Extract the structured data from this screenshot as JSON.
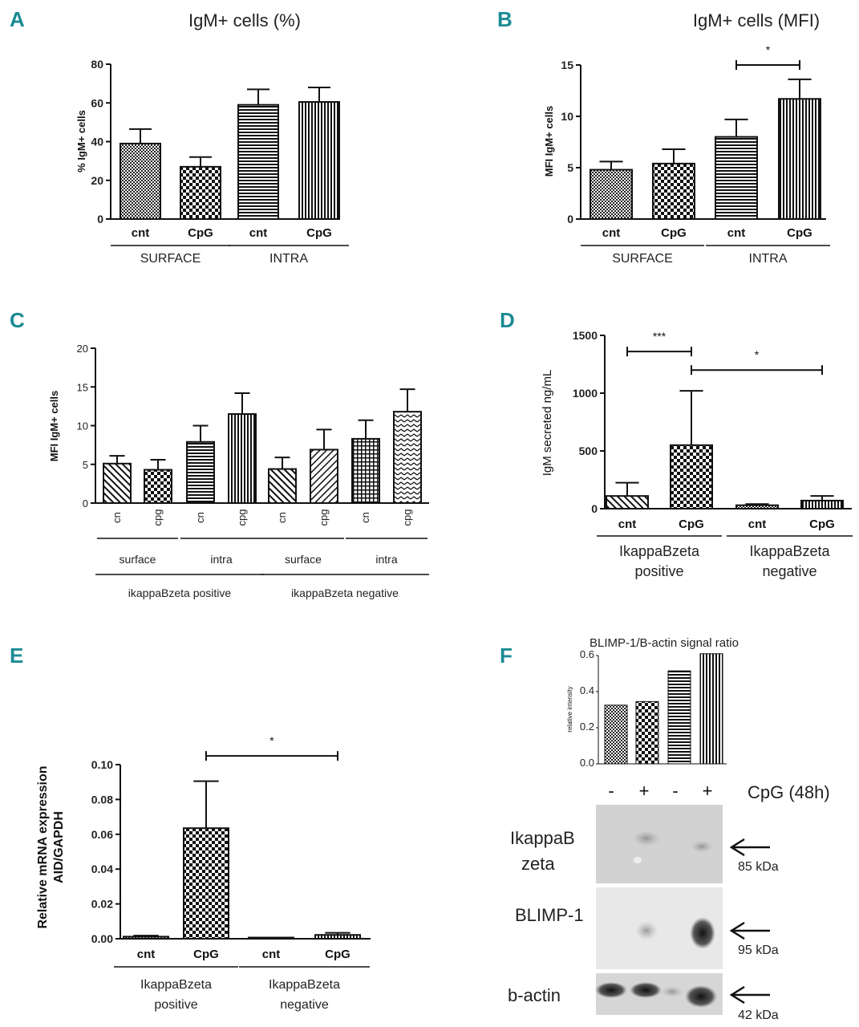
{
  "panels": {
    "A": {
      "letter": "A"
    },
    "B": {
      "letter": "B"
    },
    "C": {
      "letter": "C"
    },
    "D": {
      "letter": "D"
    },
    "E": {
      "letter": "E"
    },
    "F": {
      "letter": "F"
    }
  },
  "chart_data": [
    {
      "id": "A",
      "type": "bar",
      "title": "IgM+ cells (%)",
      "ylabel": "% IgM+ cells",
      "ylim": [
        0,
        80
      ],
      "yticks": [
        0,
        20,
        40,
        60,
        80
      ],
      "categories": [
        "cnt",
        "CpG",
        "cnt",
        "CpG"
      ],
      "groups": [
        {
          "label": "SURFACE",
          "from": 0,
          "to": 1
        },
        {
          "label": "INTRA",
          "from": 2,
          "to": 3
        }
      ],
      "values": [
        39,
        27,
        59,
        60.5
      ],
      "errors": [
        7.5,
        5,
        8,
        7.5
      ],
      "patterns": [
        "dots",
        "checker",
        "hlines",
        "vlines"
      ]
    },
    {
      "id": "B",
      "type": "bar",
      "title": "IgM+ cells (MFI)",
      "ylabel": "MFI IgM+ cells",
      "ylim": [
        0,
        15
      ],
      "yticks": [
        0,
        5,
        10,
        15
      ],
      "categories": [
        "cnt",
        "CpG",
        "cnt",
        "CpG"
      ],
      "groups": [
        {
          "label": "SURFACE",
          "from": 0,
          "to": 1
        },
        {
          "label": "INTRA",
          "from": 2,
          "to": 3
        }
      ],
      "values": [
        4.8,
        5.4,
        8.0,
        11.7
      ],
      "errors": [
        0.8,
        1.4,
        1.7,
        1.9
      ],
      "patterns": [
        "dots",
        "checker",
        "hlines",
        "vlines"
      ],
      "significance": [
        {
          "from": 2,
          "to": 3,
          "label": "*",
          "y": 15
        }
      ]
    },
    {
      "id": "C",
      "type": "bar",
      "ylabel": "MFI IgM+ cells",
      "ylim": [
        0,
        20
      ],
      "yticks": [
        0,
        5,
        10,
        15,
        20
      ],
      "categories": [
        "cn",
        "cpg",
        "cn",
        "cpg",
        "cn",
        "cpg",
        "cn",
        "cpg"
      ],
      "subgroups": [
        {
          "label": "surface",
          "from": 0,
          "to": 1
        },
        {
          "label": "intra",
          "from": 2,
          "to": 3
        },
        {
          "label": "surface",
          "from": 4,
          "to": 5
        },
        {
          "label": "intra",
          "from": 6,
          "to": 7
        }
      ],
      "groups": [
        {
          "label": "ikappaBzeta positive",
          "from": 0,
          "to": 3
        },
        {
          "label": "ikappaBzeta negative",
          "from": 4,
          "to": 7
        }
      ],
      "values": [
        5.1,
        4.3,
        7.9,
        11.5,
        4.4,
        6.9,
        8.3,
        11.8
      ],
      "errors": [
        1.0,
        1.3,
        2.1,
        2.7,
        1.5,
        2.6,
        2.4,
        2.9
      ],
      "patterns": [
        "diag",
        "checker",
        "hlines",
        "vlines",
        "diag",
        "rdiag",
        "grid",
        "zigzag"
      ]
    },
    {
      "id": "D",
      "type": "bar",
      "ylabel": "IgM secreted ng/mL",
      "ylim": [
        0,
        1500
      ],
      "yticks": [
        0,
        500,
        1000,
        1500
      ],
      "categories": [
        "cnt",
        "CpG",
        "cnt",
        "CpG"
      ],
      "groups": [
        {
          "label": "IkappaBzeta",
          "label2": "positive",
          "from": 0,
          "to": 1
        },
        {
          "label": "IkappaBzeta",
          "label2": "negative",
          "from": 2,
          "to": 3
        }
      ],
      "values": [
        110,
        550,
        30,
        70
      ],
      "errors": [
        115,
        470,
        10,
        40
      ],
      "patterns": [
        "diag",
        "checker",
        "dots",
        "vlines"
      ],
      "significance": [
        {
          "from": 0,
          "to": 1,
          "label": "***",
          "y": 1360
        },
        {
          "from": 1,
          "to": 3,
          "label": "*",
          "y": 1200
        }
      ]
    },
    {
      "id": "E",
      "type": "bar",
      "ylabel": "Relative mRNA expression",
      "ylabel2": "AID/GAPDH",
      "ylim": [
        0,
        0.1
      ],
      "yticks": [
        "0.00",
        "0.02",
        "0.04",
        "0.06",
        "0.08",
        "0.10"
      ],
      "categories": [
        "cnt",
        "CpG",
        "cnt",
        "CpG"
      ],
      "groups": [
        {
          "label": "IkappaBzeta",
          "label2": "positive",
          "from": 0,
          "to": 1
        },
        {
          "label": "IkappaBzeta",
          "label2": "negative",
          "from": 2,
          "to": 3
        }
      ],
      "values": [
        0.0012,
        0.0635,
        0.0003,
        0.0022
      ],
      "errors": [
        0.0006,
        0.027,
        0.0002,
        0.0012
      ],
      "patterns": [
        "dots",
        "checker",
        "hlines",
        "vlines"
      ],
      "significance": [
        {
          "from": 1,
          "to": 3,
          "label": "*",
          "y": 0.105
        }
      ]
    },
    {
      "id": "F",
      "type": "bar",
      "title": "BLIMP-1/B-actin signal ratio",
      "ylabel": "relative intensity",
      "ylim": [
        0,
        0.6
      ],
      "yticks": [
        "0.0",
        "0.2",
        "0.4",
        "0.6"
      ],
      "categories": [
        "-",
        "+",
        "-",
        "+"
      ],
      "values": [
        0.325,
        0.345,
        0.515,
        0.61
      ],
      "patterns": [
        "dots",
        "checker",
        "hlines",
        "vlines"
      ]
    }
  ],
  "blot": {
    "treatment_label": "CpG (48h)",
    "lanes": [
      "-",
      "+",
      "-",
      "+"
    ],
    "rows": [
      {
        "label1": "IkappaB",
        "label2": "zeta",
        "kda": "85 kDa"
      },
      {
        "label1": "BLIMP-1",
        "label2": "",
        "kda": "95 kDa"
      },
      {
        "label1": "b-actin",
        "label2": "",
        "kda": "42 kDa"
      }
    ]
  }
}
